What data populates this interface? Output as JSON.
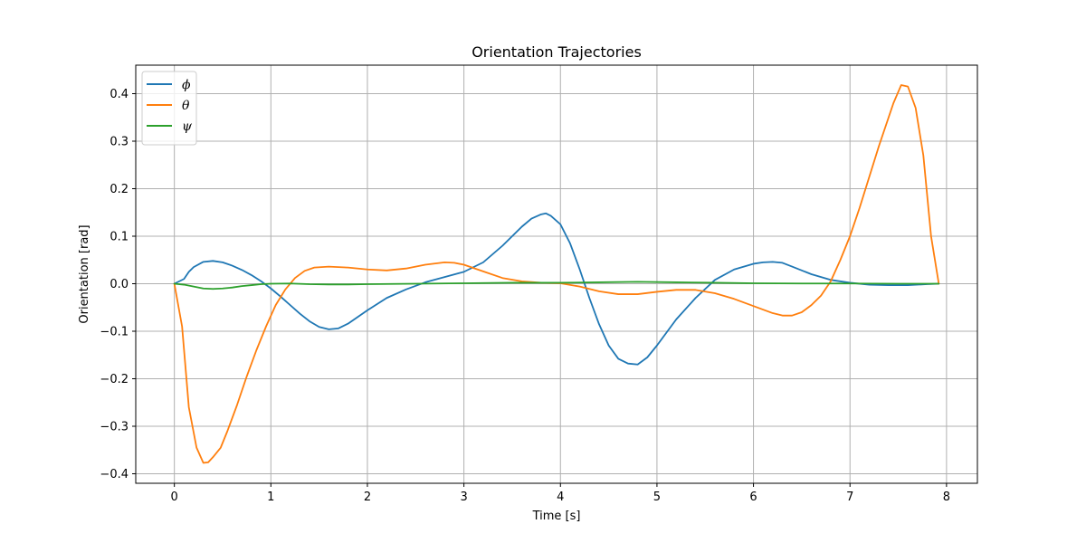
{
  "chart_data": {
    "type": "line",
    "title": "Orientation Trajectories",
    "xlabel": "Time [s]",
    "ylabel": "Orientation [rad]",
    "xlim": [
      -0.4,
      8.32
    ],
    "ylim": [
      -0.42,
      0.46
    ],
    "xticks": [
      0,
      1,
      2,
      3,
      4,
      5,
      6,
      7,
      8
    ],
    "xtick_labels": [
      "0",
      "1",
      "2",
      "3",
      "4",
      "5",
      "6",
      "7",
      "8"
    ],
    "yticks": [
      -0.4,
      -0.3,
      -0.2,
      -0.1,
      0.0,
      0.1,
      0.2,
      0.3,
      0.4
    ],
    "ytick_labels": [
      "−0.4",
      "−0.3",
      "−0.2",
      "−0.1",
      "0.0",
      "0.1",
      "0.2",
      "0.3",
      "0.4"
    ],
    "grid": true,
    "legend_position": "top-left",
    "series": [
      {
        "name": "ϕ",
        "color": "#1f77b4",
        "x": [
          0,
          0.1,
          0.15,
          0.2,
          0.3,
          0.4,
          0.5,
          0.6,
          0.7,
          0.8,
          0.9,
          1.0,
          1.1,
          1.2,
          1.3,
          1.4,
          1.5,
          1.6,
          1.7,
          1.8,
          1.9,
          2.0,
          2.2,
          2.4,
          2.6,
          2.8,
          3.0,
          3.2,
          3.4,
          3.6,
          3.7,
          3.8,
          3.85,
          3.9,
          4.0,
          4.1,
          4.2,
          4.3,
          4.4,
          4.5,
          4.6,
          4.7,
          4.8,
          4.9,
          5.0,
          5.2,
          5.4,
          5.6,
          5.8,
          6.0,
          6.1,
          6.2,
          6.3,
          6.4,
          6.6,
          6.8,
          7.0,
          7.2,
          7.4,
          7.6,
          7.8,
          7.92
        ],
        "y": [
          0,
          0.01,
          0.025,
          0.035,
          0.046,
          0.048,
          0.045,
          0.038,
          0.029,
          0.018,
          0.005,
          -0.01,
          -0.027,
          -0.045,
          -0.063,
          -0.079,
          -0.091,
          -0.096,
          -0.094,
          -0.084,
          -0.07,
          -0.056,
          -0.03,
          -0.012,
          0.003,
          0.014,
          0.025,
          0.045,
          0.08,
          0.12,
          0.137,
          0.146,
          0.148,
          0.143,
          0.125,
          0.085,
          0.03,
          -0.03,
          -0.085,
          -0.13,
          -0.158,
          -0.168,
          -0.17,
          -0.155,
          -0.13,
          -0.075,
          -0.03,
          0.008,
          0.03,
          0.042,
          0.045,
          0.046,
          0.044,
          0.036,
          0.02,
          0.008,
          0.002,
          -0.002,
          -0.003,
          -0.003,
          -0.001,
          0
        ]
      },
      {
        "name": "θ",
        "color": "#ff7f0e",
        "x": [
          0,
          0.08,
          0.15,
          0.23,
          0.3,
          0.35,
          0.4,
          0.48,
          0.55,
          0.65,
          0.75,
          0.85,
          0.95,
          1.05,
          1.15,
          1.25,
          1.35,
          1.45,
          1.6,
          1.8,
          2.0,
          2.2,
          2.4,
          2.6,
          2.8,
          2.9,
          3.0,
          3.2,
          3.4,
          3.6,
          3.8,
          4.0,
          4.2,
          4.4,
          4.6,
          4.8,
          5.0,
          5.2,
          5.4,
          5.6,
          5.8,
          6.0,
          6.2,
          6.3,
          6.4,
          6.5,
          6.6,
          6.7,
          6.8,
          6.9,
          7.0,
          7.1,
          7.2,
          7.3,
          7.4,
          7.45,
          7.53,
          7.6,
          7.68,
          7.76,
          7.84,
          7.92
        ],
        "y": [
          0,
          -0.09,
          -0.26,
          -0.345,
          -0.377,
          -0.376,
          -0.365,
          -0.345,
          -0.31,
          -0.255,
          -0.195,
          -0.14,
          -0.09,
          -0.045,
          -0.012,
          0.012,
          0.027,
          0.034,
          0.036,
          0.034,
          0.03,
          0.028,
          0.032,
          0.04,
          0.045,
          0.044,
          0.04,
          0.026,
          0.012,
          0.005,
          0.002,
          0.001,
          -0.006,
          -0.016,
          -0.022,
          -0.022,
          -0.017,
          -0.013,
          -0.013,
          -0.02,
          -0.032,
          -0.047,
          -0.062,
          -0.067,
          -0.067,
          -0.06,
          -0.045,
          -0.025,
          0.005,
          0.05,
          0.1,
          0.16,
          0.225,
          0.29,
          0.35,
          0.38,
          0.418,
          0.415,
          0.37,
          0.27,
          0.1,
          0
        ]
      },
      {
        "name": "ψ",
        "color": "#2ca02c",
        "x": [
          0,
          0.1,
          0.2,
          0.3,
          0.4,
          0.5,
          0.6,
          0.7,
          0.8,
          0.9,
          1.0,
          1.2,
          1.4,
          1.6,
          1.8,
          2.0,
          2.5,
          3.0,
          3.5,
          4.0,
          4.4,
          4.8,
          5.2,
          5.6,
          6.0,
          6.5,
          7.0,
          7.5,
          7.92
        ],
        "y": [
          0,
          -0.002,
          -0.006,
          -0.01,
          -0.011,
          -0.01,
          -0.008,
          -0.005,
          -0.003,
          -0.001,
          0,
          0.0005,
          -0.001,
          -0.0015,
          -0.0015,
          -0.001,
          0,
          0.001,
          0.002,
          0.002,
          0.003,
          0.004,
          0.003,
          0.002,
          0.001,
          0.0005,
          0.0005,
          0,
          0
        ]
      }
    ]
  }
}
